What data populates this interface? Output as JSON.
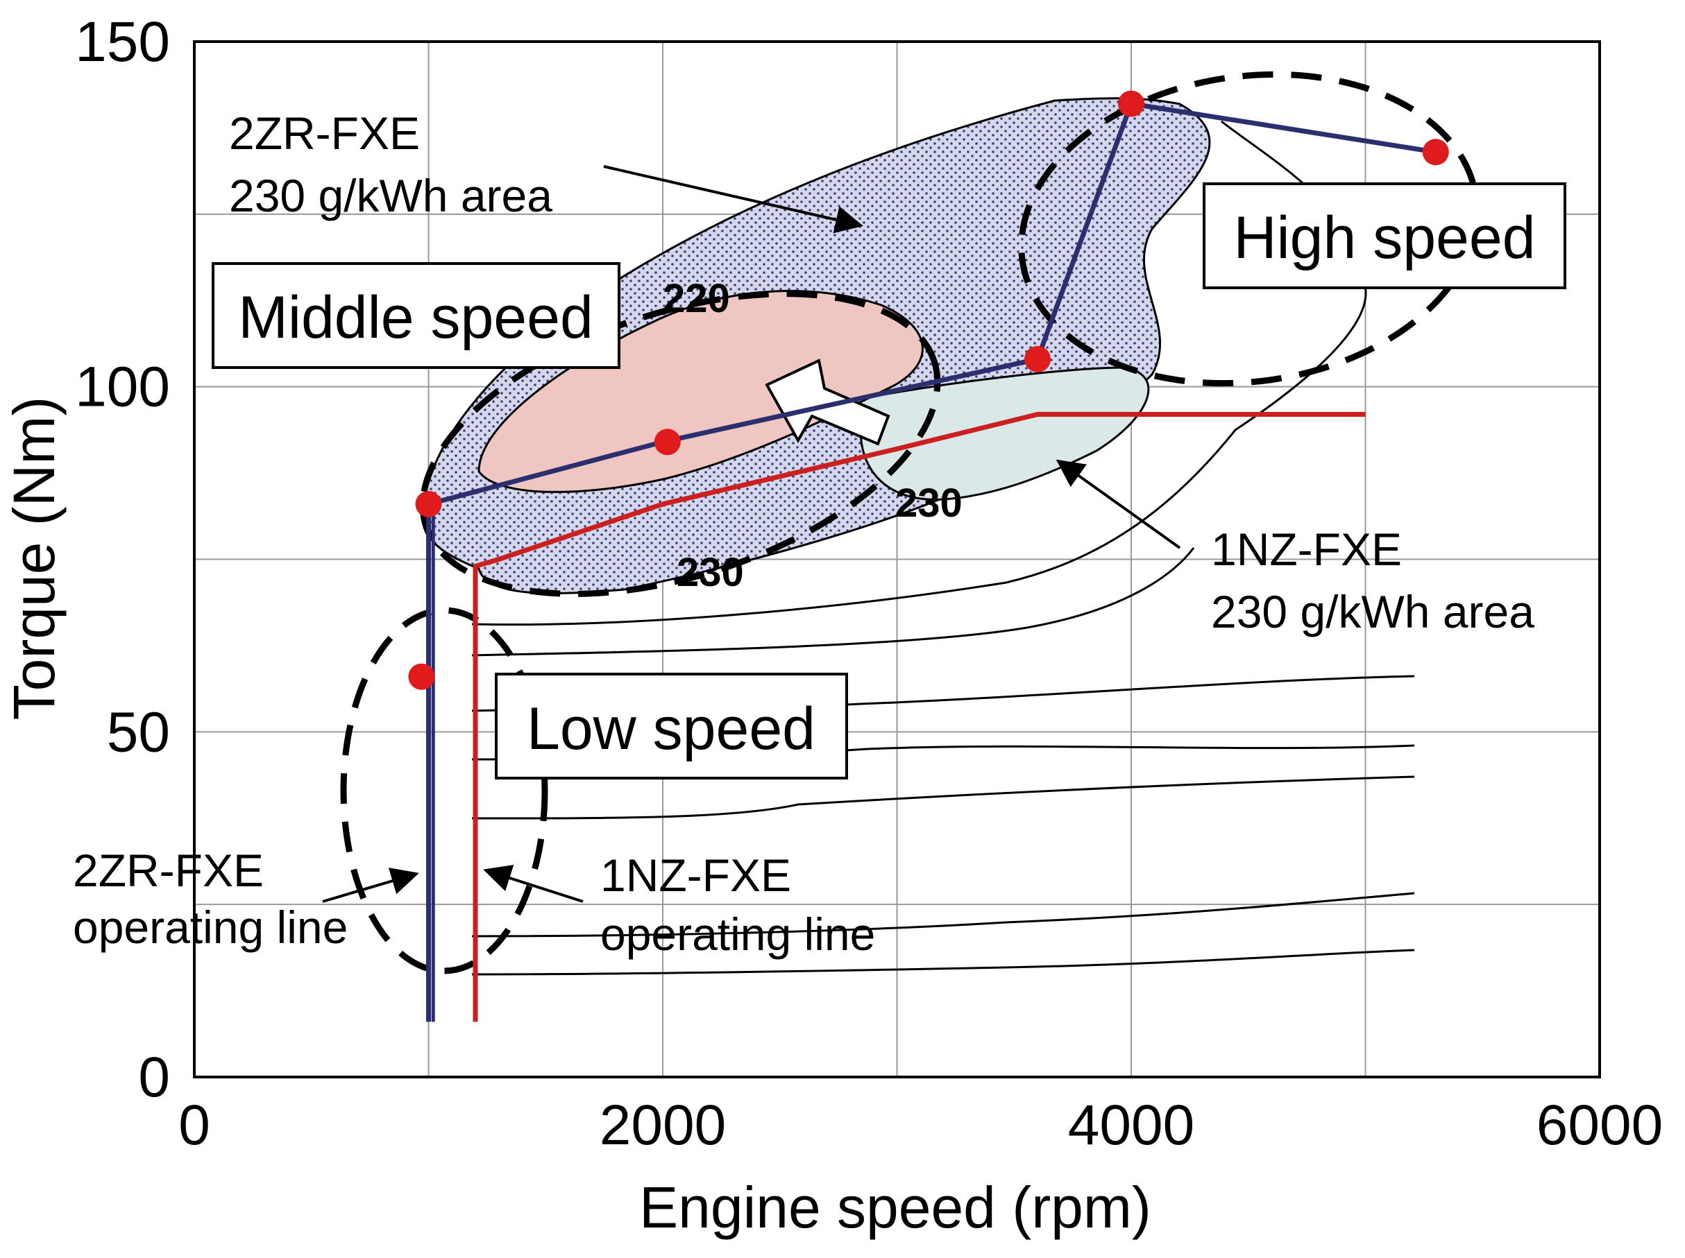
{
  "chart_data": {
    "type": "line",
    "title": "",
    "xlabel": "Engine speed (rpm)",
    "ylabel": "Torque (Nm)",
    "xlim": [
      0,
      6000
    ],
    "ylim": [
      0,
      150
    ],
    "xticks": [
      "0",
      "2000",
      "4000",
      "6000"
    ],
    "yticks": [
      "0",
      "50",
      "100",
      "150"
    ],
    "grid": true,
    "colors": {
      "operating_line_2zr": "#2b2f6e",
      "operating_line_1nz": "#cc1f1f",
      "highlight_points": "#e01b1b",
      "area_2zr_fill": "#b9bedb",
      "area_inner_fill": "#efc8c4",
      "area_1nz_fill": "#d6e6e6"
    },
    "series": [
      {
        "name": "2ZR-FXE operating line",
        "x": [
          1000,
          1000,
          1000,
          2000,
          3600,
          4000,
          5300
        ],
        "y": [
          8,
          60,
          83,
          92,
          104,
          141,
          134
        ]
      },
      {
        "name": "1NZ-FXE operating line",
        "x": [
          1200,
          1200,
          1300,
          2000,
          3000,
          3600,
          5000
        ],
        "y": [
          8,
          74,
          75,
          83,
          91,
          96,
          96
        ]
      }
    ],
    "highlight_points": {
      "x": [
        970,
        1000,
        2020,
        3600,
        4000,
        5300
      ],
      "y": [
        58,
        83,
        92,
        104,
        141,
        134
      ]
    },
    "regions": [
      {
        "label": "2ZR-FXE\n230 g/kWh area",
        "lines": [
          "2ZR-FXE",
          "230 g/kWh area"
        ]
      },
      {
        "label": "1NZ-FXE\n230 g/kWh area",
        "lines": [
          "1NZ-FXE",
          "230 g/kWh area"
        ]
      }
    ],
    "contour_labels": [
      "220",
      "230",
      "230"
    ],
    "annotations": {
      "middle_speed": "Middle speed",
      "high_speed": "High speed",
      "low_speed": "Low speed",
      "zr_line_label": [
        "2ZR-FXE",
        "operating line"
      ],
      "nz_line_label": [
        "1NZ-FXE",
        "operating line"
      ]
    }
  }
}
